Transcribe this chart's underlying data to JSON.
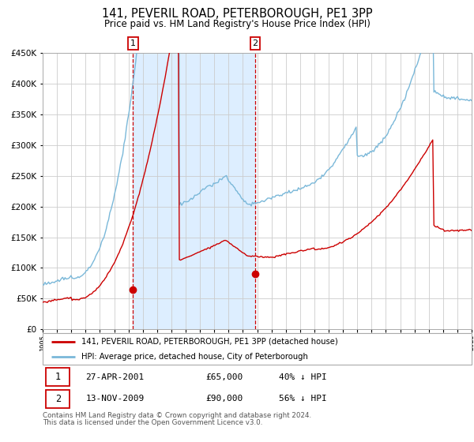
{
  "title": "141, PEVERIL ROAD, PETERBOROUGH, PE1 3PP",
  "subtitle": "Price paid vs. HM Land Registry's House Price Index (HPI)",
  "legend_line1": "141, PEVERIL ROAD, PETERBOROUGH, PE1 3PP (detached house)",
  "legend_line2": "HPI: Average price, detached house, City of Peterborough",
  "table_row1": [
    "1",
    "27-APR-2001",
    "£65,000",
    "40% ↓ HPI"
  ],
  "table_row2": [
    "2",
    "13-NOV-2009",
    "£90,000",
    "56% ↓ HPI"
  ],
  "footnote": "Contains HM Land Registry data © Crown copyright and database right 2024.\nThis data is licensed under the Open Government Licence v3.0.",
  "hpi_color": "#7ab8d9",
  "property_color": "#cc0000",
  "point_color": "#cc0000",
  "dashed_line_color": "#cc0000",
  "shade_color": "#ddeeff",
  "grid_color": "#cccccc",
  "bg_color": "#ffffff",
  "ylim": [
    0,
    450000
  ],
  "yticks": [
    0,
    50000,
    100000,
    150000,
    200000,
    250000,
    300000,
    350000,
    400000,
    450000
  ],
  "purchase1_year": 2001.32,
  "purchase2_year": 2009.87,
  "purchase1_price": 65000,
  "purchase2_price": 90000
}
